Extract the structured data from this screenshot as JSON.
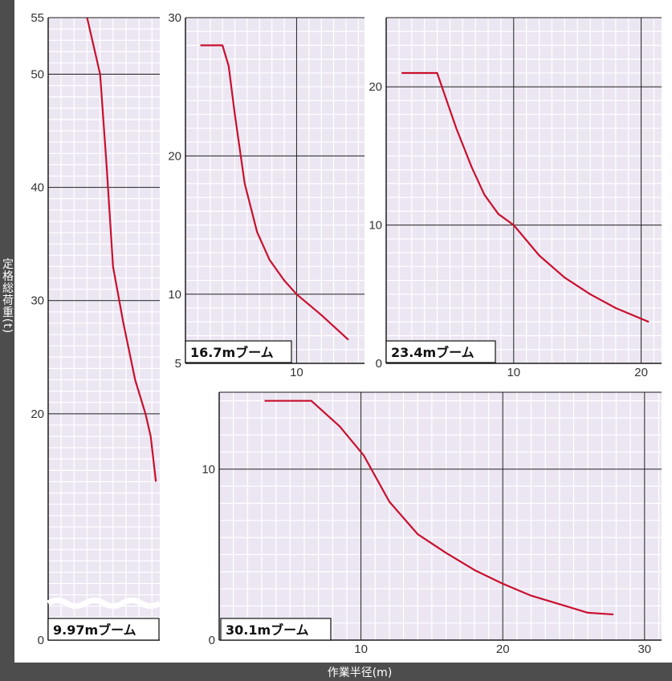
{
  "axis_titles": {
    "y": "定格総荷重(t)",
    "x": "作業半径(m)"
  },
  "colors": {
    "panel_bg": "#ece6f2",
    "fine_grid": "#ffffff",
    "major_grid": "#1a1a1a",
    "curve": "#c8102e",
    "axis_bar": "#4d4d4d",
    "label_bg": "#ffffff"
  },
  "chart_data": [
    {
      "type": "line",
      "title": "9.97mブーム",
      "xlim": [
        1,
        9.6
      ],
      "ylim": [
        0,
        55
      ],
      "y_ticks": [
        55,
        50,
        40,
        30,
        20,
        0
      ],
      "x_ticks": [],
      "axis_break": true,
      "grid": true,
      "series": [
        {
          "x": [
            4.0,
            5.0,
            5.5,
            6.0,
            6.8,
            7.7,
            8.5,
            8.9,
            9.3
          ],
          "y": [
            55,
            50,
            42,
            33,
            28,
            23,
            20,
            18,
            14
          ]
        }
      ]
    },
    {
      "type": "line",
      "title": "16.7mブーム",
      "xlim": [
        1,
        15.5
      ],
      "ylim": [
        5,
        30
      ],
      "y_ticks": [
        30,
        20,
        10,
        5
      ],
      "x_ticks": [
        10
      ],
      "grid": true,
      "series": [
        {
          "x": [
            2.2,
            4.0,
            4.5,
            5.0,
            5.8,
            6.8,
            7.8,
            9.0,
            10.0,
            12.0,
            14.2
          ],
          "y": [
            28,
            28,
            26.5,
            23,
            18,
            14.5,
            12.5,
            11,
            10,
            8.5,
            6.7
          ]
        }
      ]
    },
    {
      "type": "line",
      "title": "23.4mブーム",
      "xlim": [
        0,
        21.6
      ],
      "ylim": [
        0,
        25
      ],
      "y_ticks": [
        20,
        10,
        0
      ],
      "x_ticks": [
        10,
        20
      ],
      "grid": true,
      "series": [
        {
          "x": [
            1.2,
            4.0,
            5.5,
            6.7,
            7.7,
            8.8,
            10.0,
            12.0,
            14.0,
            16.0,
            18.0,
            20.6
          ],
          "y": [
            21,
            21,
            17,
            14.2,
            12.2,
            10.8,
            10,
            7.8,
            6.2,
            5,
            4,
            3
          ]
        }
      ]
    },
    {
      "type": "line",
      "title": "30.1mブーム",
      "xlim": [
        0,
        31.2
      ],
      "ylim": [
        0,
        14.5
      ],
      "y_ticks": [
        10,
        0
      ],
      "x_ticks": [
        10,
        20,
        30
      ],
      "grid": true,
      "series": [
        {
          "x": [
            3.2,
            6.5,
            8.5,
            9.5,
            10.2,
            12.0,
            14.0,
            16.0,
            18.0,
            20.0,
            22.0,
            24.0,
            26.0,
            27.8
          ],
          "y": [
            14,
            14,
            12.5,
            11.5,
            10.8,
            8.1,
            6.2,
            5.1,
            4.1,
            3.3,
            2.6,
            2.1,
            1.6,
            1.5
          ]
        }
      ]
    }
  ]
}
